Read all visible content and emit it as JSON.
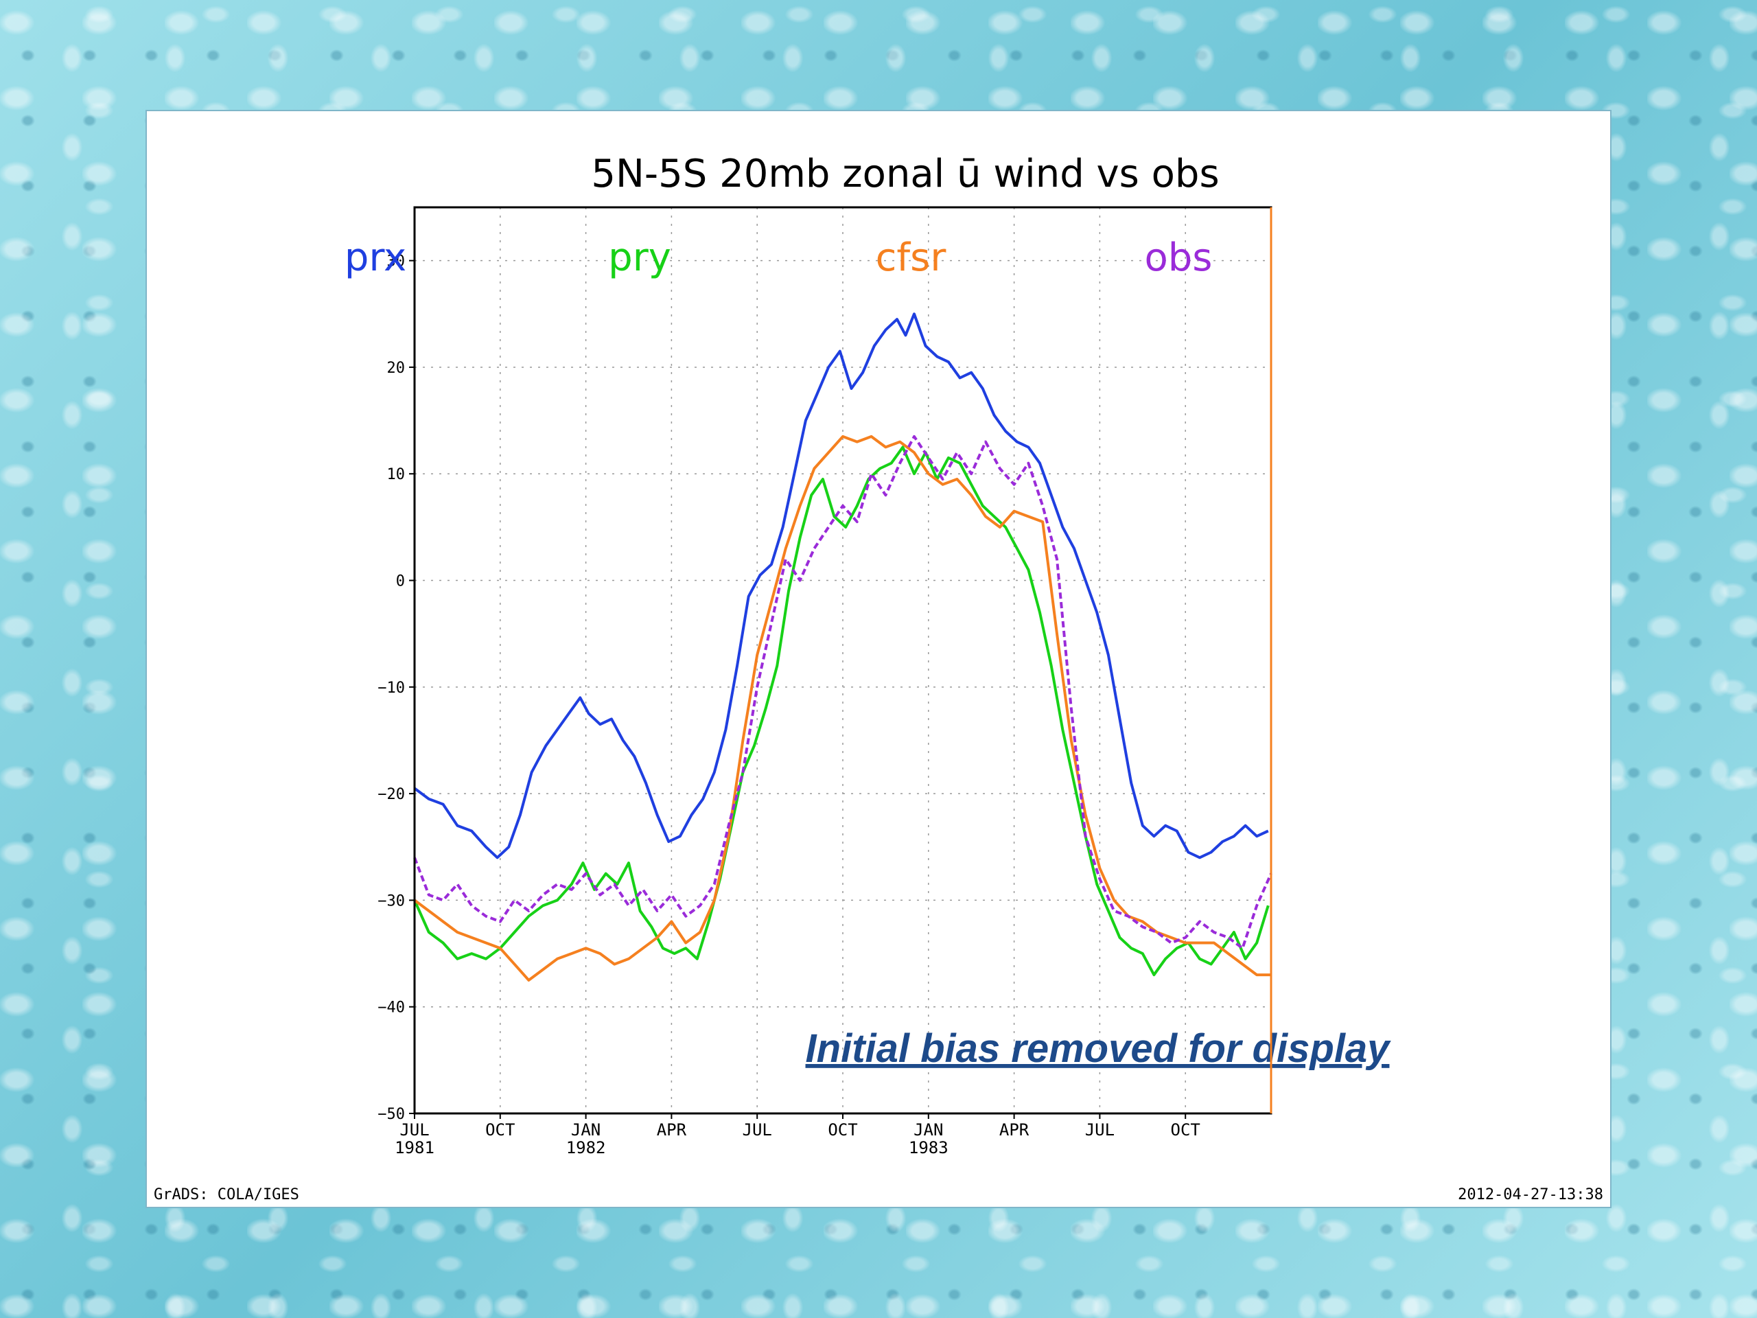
{
  "chart_data": {
    "type": "line",
    "title": "5N-5S 20mb zonal ū wind vs obs",
    "annotation": "Initial bias removed for display",
    "yticks": [
      30,
      20,
      10,
      0,
      -10,
      -20,
      -30,
      -40,
      -50
    ],
    "ylim": [
      -50,
      35
    ],
    "xlim": [
      0,
      30
    ],
    "xticks": [
      {
        "x": 0,
        "label": "JUL",
        "year": "1981"
      },
      {
        "x": 3,
        "label": "OCT",
        "year": ""
      },
      {
        "x": 6,
        "label": "JAN",
        "year": "1982"
      },
      {
        "x": 9,
        "label": "APR",
        "year": ""
      },
      {
        "x": 12,
        "label": "JUL",
        "year": ""
      },
      {
        "x": 15,
        "label": "OCT",
        "year": ""
      },
      {
        "x": 18,
        "label": "JAN",
        "year": "1983"
      },
      {
        "x": 21,
        "label": "APR",
        "year": ""
      },
      {
        "x": 24,
        "label": "JUL",
        "year": ""
      },
      {
        "x": 27,
        "label": "OCT",
        "year": ""
      }
    ],
    "grid": true,
    "series": [
      {
        "name": "prx",
        "color": "#1f3fe0",
        "dashed": false,
        "values": [
          [
            0,
            -19.5
          ],
          [
            0.5,
            -20.5
          ],
          [
            1,
            -21
          ],
          [
            1.5,
            -23
          ],
          [
            2,
            -23.5
          ],
          [
            2.5,
            -25
          ],
          [
            2.9,
            -26
          ],
          [
            3.3,
            -25
          ],
          [
            3.7,
            -22
          ],
          [
            4.1,
            -18
          ],
          [
            4.6,
            -15.5
          ],
          [
            5.0,
            -14
          ],
          [
            5.4,
            -12.5
          ],
          [
            5.8,
            -11
          ],
          [
            6.1,
            -12.5
          ],
          [
            6.5,
            -13.5
          ],
          [
            6.9,
            -13
          ],
          [
            7.3,
            -15
          ],
          [
            7.7,
            -16.5
          ],
          [
            8.1,
            -19
          ],
          [
            8.5,
            -22
          ],
          [
            8.9,
            -24.5
          ],
          [
            9.3,
            -24
          ],
          [
            9.7,
            -22
          ],
          [
            10.1,
            -20.5
          ],
          [
            10.5,
            -18
          ],
          [
            10.9,
            -14
          ],
          [
            11.3,
            -8
          ],
          [
            11.7,
            -1.5
          ],
          [
            12.1,
            0.5
          ],
          [
            12.5,
            1.5
          ],
          [
            12.9,
            5
          ],
          [
            13.3,
            10
          ],
          [
            13.7,
            15
          ],
          [
            14.1,
            17.5
          ],
          [
            14.5,
            20
          ],
          [
            14.9,
            21.5
          ],
          [
            15.3,
            18
          ],
          [
            15.7,
            19.5
          ],
          [
            16.1,
            22
          ],
          [
            16.5,
            23.5
          ],
          [
            16.9,
            24.5
          ],
          [
            17.2,
            23
          ],
          [
            17.5,
            25
          ],
          [
            17.9,
            22
          ],
          [
            18.3,
            21
          ],
          [
            18.7,
            20.5
          ],
          [
            19.1,
            19
          ],
          [
            19.5,
            19.5
          ],
          [
            19.9,
            18
          ],
          [
            20.3,
            15.5
          ],
          [
            20.7,
            14
          ],
          [
            21.1,
            13
          ],
          [
            21.5,
            12.5
          ],
          [
            21.9,
            11
          ],
          [
            22.3,
            8
          ],
          [
            22.7,
            5
          ],
          [
            23.1,
            3
          ],
          [
            23.5,
            0
          ],
          [
            23.9,
            -3
          ],
          [
            24.3,
            -7
          ],
          [
            24.7,
            -13
          ],
          [
            25.1,
            -19
          ],
          [
            25.5,
            -23
          ],
          [
            25.9,
            -24
          ],
          [
            26.3,
            -23
          ],
          [
            26.7,
            -23.5
          ],
          [
            27.1,
            -25.5
          ],
          [
            27.5,
            -26
          ],
          [
            27.9,
            -25.5
          ],
          [
            28.3,
            -24.5
          ],
          [
            28.7,
            -24
          ],
          [
            29.1,
            -23
          ],
          [
            29.5,
            -24
          ],
          [
            29.9,
            -23.5
          ]
        ]
      },
      {
        "name": "pry",
        "color": "#17d117",
        "dashed": false,
        "values": [
          [
            0,
            -30
          ],
          [
            0.5,
            -33
          ],
          [
            1,
            -34
          ],
          [
            1.5,
            -35.5
          ],
          [
            2,
            -35
          ],
          [
            2.5,
            -35.5
          ],
          [
            3,
            -34.5
          ],
          [
            3.5,
            -33
          ],
          [
            4,
            -31.5
          ],
          [
            4.5,
            -30.5
          ],
          [
            5,
            -30
          ],
          [
            5.5,
            -28.5
          ],
          [
            5.9,
            -26.5
          ],
          [
            6.3,
            -29
          ],
          [
            6.7,
            -27.5
          ],
          [
            7.1,
            -28.5
          ],
          [
            7.5,
            -26.5
          ],
          [
            7.9,
            -31
          ],
          [
            8.3,
            -32.5
          ],
          [
            8.7,
            -34.5
          ],
          [
            9.1,
            -35
          ],
          [
            9.5,
            -34.5
          ],
          [
            9.9,
            -35.5
          ],
          [
            10.3,
            -32
          ],
          [
            10.7,
            -28
          ],
          [
            11.1,
            -23
          ],
          [
            11.5,
            -18
          ],
          [
            11.9,
            -15.5
          ],
          [
            12.3,
            -12
          ],
          [
            12.7,
            -8
          ],
          [
            13.1,
            -1
          ],
          [
            13.5,
            4
          ],
          [
            13.9,
            8
          ],
          [
            14.3,
            9.5
          ],
          [
            14.7,
            6
          ],
          [
            15.1,
            5
          ],
          [
            15.5,
            7
          ],
          [
            15.9,
            9.5
          ],
          [
            16.3,
            10.5
          ],
          [
            16.7,
            11
          ],
          [
            17.1,
            12.5
          ],
          [
            17.5,
            10
          ],
          [
            17.9,
            12
          ],
          [
            18.3,
            9.5
          ],
          [
            18.7,
            11.5
          ],
          [
            19.1,
            11
          ],
          [
            19.5,
            9
          ],
          [
            19.9,
            7
          ],
          [
            20.3,
            6
          ],
          [
            20.7,
            5
          ],
          [
            21.1,
            3
          ],
          [
            21.5,
            1
          ],
          [
            21.9,
            -3
          ],
          [
            22.3,
            -8
          ],
          [
            22.7,
            -14
          ],
          [
            23.1,
            -19
          ],
          [
            23.5,
            -24
          ],
          [
            23.9,
            -28.5
          ],
          [
            24.3,
            -31
          ],
          [
            24.7,
            -33.5
          ],
          [
            25.1,
            -34.5
          ],
          [
            25.5,
            -35
          ],
          [
            25.9,
            -37
          ],
          [
            26.3,
            -35.5
          ],
          [
            26.7,
            -34.5
          ],
          [
            27.1,
            -34
          ],
          [
            27.5,
            -35.5
          ],
          [
            27.9,
            -36
          ],
          [
            28.3,
            -34.5
          ],
          [
            28.7,
            -33
          ],
          [
            29.1,
            -35.5
          ],
          [
            29.5,
            -34
          ],
          [
            29.9,
            -30.5
          ]
        ]
      },
      {
        "name": "cfsr",
        "color": "#f5801f",
        "dashed": false,
        "values": [
          [
            0,
            -30
          ],
          [
            0.5,
            -31
          ],
          [
            1,
            -32
          ],
          [
            1.5,
            -33
          ],
          [
            2,
            -33.5
          ],
          [
            2.5,
            -34
          ],
          [
            3,
            -34.5
          ],
          [
            3.5,
            -36
          ],
          [
            4,
            -37.5
          ],
          [
            4.5,
            -36.5
          ],
          [
            5,
            -35.5
          ],
          [
            5.5,
            -35
          ],
          [
            6,
            -34.5
          ],
          [
            6.5,
            -35
          ],
          [
            7,
            -36
          ],
          [
            7.5,
            -35.5
          ],
          [
            8,
            -34.5
          ],
          [
            8.5,
            -33.5
          ],
          [
            9,
            -32
          ],
          [
            9.5,
            -34
          ],
          [
            10,
            -33
          ],
          [
            10.5,
            -30
          ],
          [
            11,
            -24
          ],
          [
            11.5,
            -15
          ],
          [
            12,
            -7
          ],
          [
            12.5,
            -2
          ],
          [
            13,
            3
          ],
          [
            13.5,
            7
          ],
          [
            14,
            10.5
          ],
          [
            14.5,
            12
          ],
          [
            15,
            13.5
          ],
          [
            15.5,
            13
          ],
          [
            16,
            13.5
          ],
          [
            16.5,
            12.5
          ],
          [
            17,
            13
          ],
          [
            17.5,
            12
          ],
          [
            18,
            10
          ],
          [
            18.5,
            9
          ],
          [
            19,
            9.5
          ],
          [
            19.5,
            8
          ],
          [
            20,
            6
          ],
          [
            20.5,
            5
          ],
          [
            21,
            6.5
          ],
          [
            21.5,
            6
          ],
          [
            22,
            5.5
          ],
          [
            22.5,
            -5
          ],
          [
            23,
            -15
          ],
          [
            23.5,
            -22
          ],
          [
            24,
            -27
          ],
          [
            24.5,
            -30
          ],
          [
            25,
            -31.5
          ],
          [
            25.5,
            -32
          ],
          [
            26,
            -33
          ],
          [
            26.5,
            -33.5
          ],
          [
            27,
            -34
          ],
          [
            27.5,
            -34
          ],
          [
            28,
            -34
          ],
          [
            28.5,
            -35
          ],
          [
            29,
            -36
          ],
          [
            29.5,
            -37
          ],
          [
            30,
            -37
          ]
        ]
      },
      {
        "name": "obs",
        "color": "#9a2bd9",
        "dashed": true,
        "values": [
          [
            0,
            -26
          ],
          [
            0.5,
            -29.5
          ],
          [
            1,
            -30
          ],
          [
            1.5,
            -28.5
          ],
          [
            2,
            -30.5
          ],
          [
            2.5,
            -31.5
          ],
          [
            3,
            -32
          ],
          [
            3.5,
            -30
          ],
          [
            4,
            -31
          ],
          [
            4.5,
            -29.5
          ],
          [
            5,
            -28.5
          ],
          [
            5.5,
            -29
          ],
          [
            6,
            -27.5
          ],
          [
            6.5,
            -29.5
          ],
          [
            7,
            -28.5
          ],
          [
            7.5,
            -30.5
          ],
          [
            8,
            -29
          ],
          [
            8.5,
            -31
          ],
          [
            9,
            -29.5
          ],
          [
            9.5,
            -31.5
          ],
          [
            10,
            -30.5
          ],
          [
            10.5,
            -28.5
          ],
          [
            11,
            -23
          ],
          [
            11.5,
            -18
          ],
          [
            12,
            -10
          ],
          [
            12.5,
            -4
          ],
          [
            13,
            2
          ],
          [
            13.5,
            0
          ],
          [
            14,
            3
          ],
          [
            14.5,
            5
          ],
          [
            15,
            7
          ],
          [
            15.5,
            5.5
          ],
          [
            16,
            10
          ],
          [
            16.5,
            8
          ],
          [
            17,
            11
          ],
          [
            17.5,
            13.5
          ],
          [
            18,
            11.5
          ],
          [
            18.5,
            9.5
          ],
          [
            19,
            12
          ],
          [
            19.5,
            10
          ],
          [
            20,
            13
          ],
          [
            20.5,
            10.5
          ],
          [
            21,
            9
          ],
          [
            21.5,
            11
          ],
          [
            22,
            7
          ],
          [
            22.5,
            2
          ],
          [
            23,
            -12
          ],
          [
            23.5,
            -24
          ],
          [
            24,
            -28
          ],
          [
            24.5,
            -31
          ],
          [
            25,
            -31.5
          ],
          [
            25.5,
            -32.5
          ],
          [
            26,
            -33
          ],
          [
            26.5,
            -34
          ],
          [
            27,
            -33.5
          ],
          [
            27.5,
            -32
          ],
          [
            28,
            -33
          ],
          [
            28.5,
            -33.5
          ],
          [
            29,
            -34.5
          ],
          [
            29.5,
            -30.5
          ],
          [
            30,
            -27.5
          ]
        ]
      }
    ]
  },
  "footer": {
    "left": "GrADS: COLA/IGES",
    "right": "2012-04-27-13:38"
  },
  "colors": {
    "annotation": "#1d4a8a",
    "frame": "#000000",
    "right_edge": "#f5801f",
    "grid": "#999999"
  }
}
